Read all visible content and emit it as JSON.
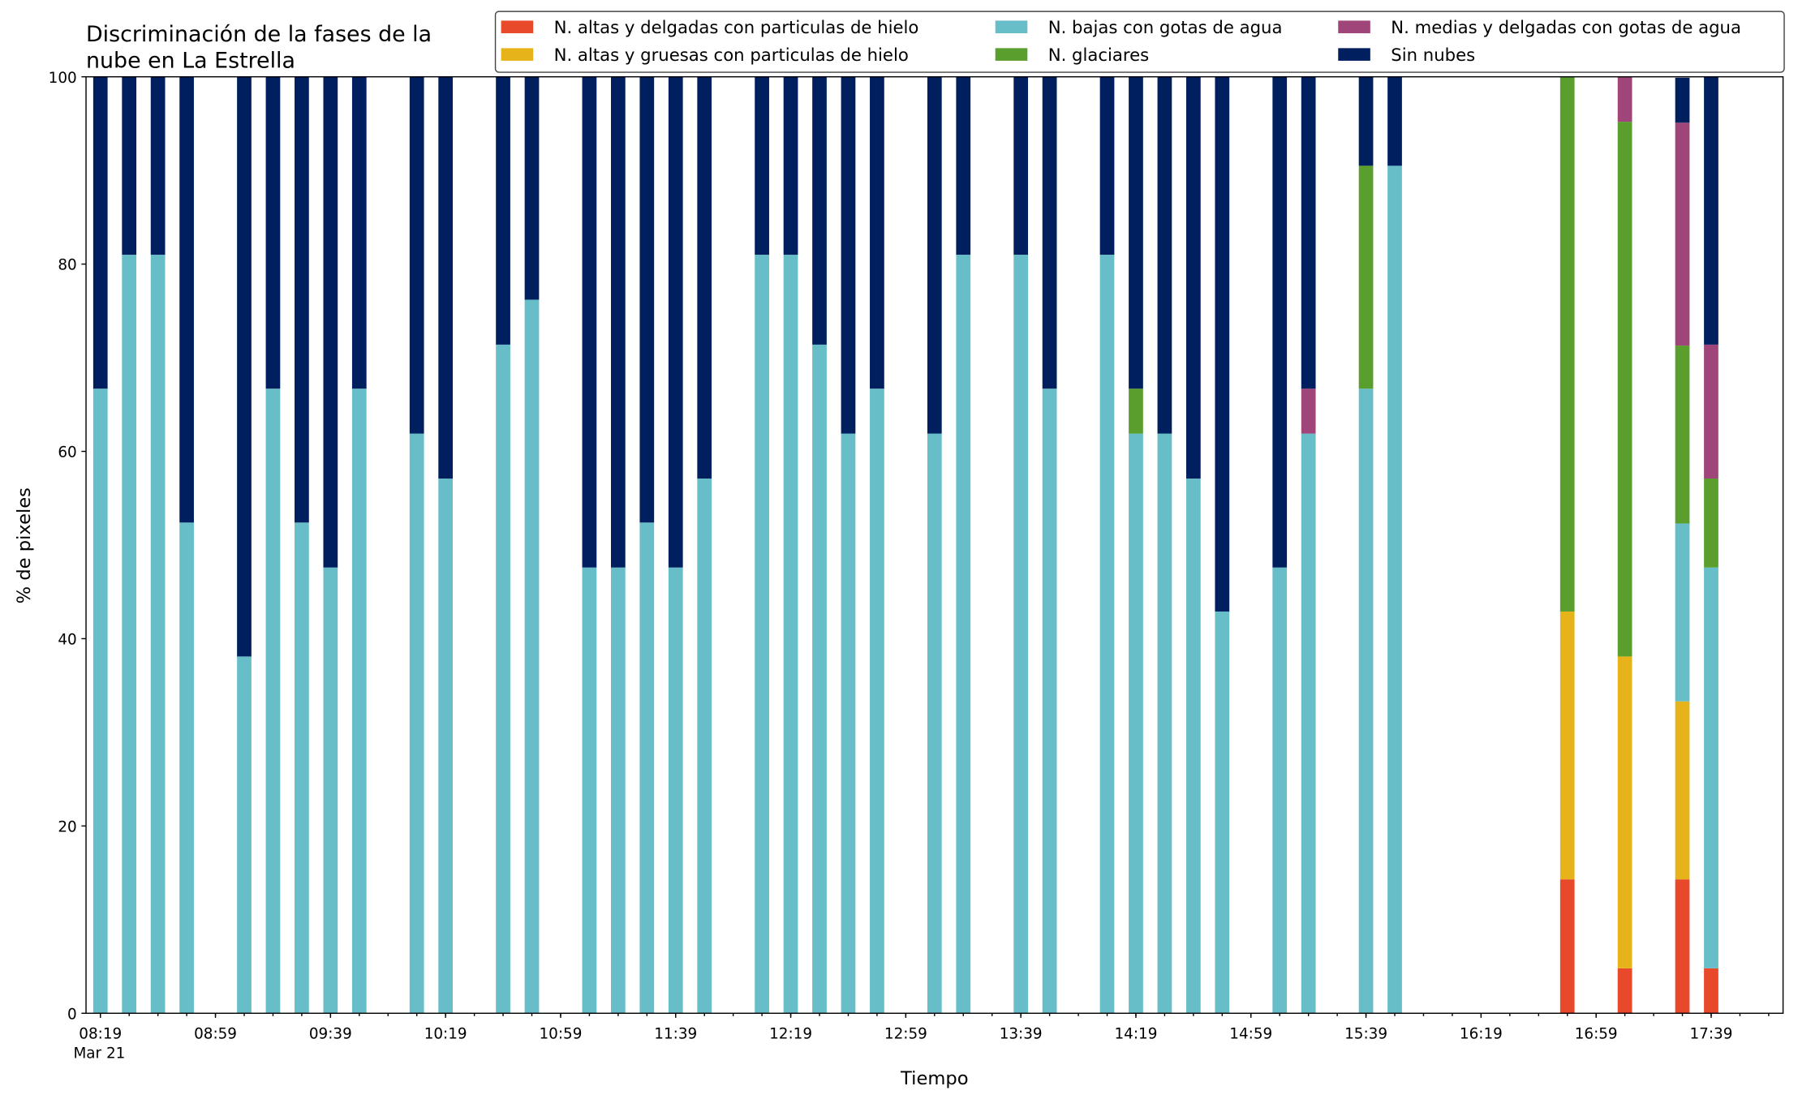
{
  "chart_data": {
    "type": "stacked_bar",
    "title": [
      "Discriminación de la fases de la",
      "nube en La Estrella"
    ],
    "xlabel": "Tiempo",
    "ylabel": "% de pixeles",
    "x_offset_label": "Mar 21",
    "x": [
      "08:19",
      "08:29",
      "08:39",
      "08:49",
      "09:09",
      "09:19",
      "09:29",
      "09:39",
      "09:49",
      "10:09",
      "10:19",
      "10:39",
      "10:49",
      "11:09",
      "11:19",
      "11:29",
      "11:39",
      "11:49",
      "12:09",
      "12:19",
      "12:29",
      "12:39",
      "12:49",
      "13:09",
      "13:19",
      "13:39",
      "13:49",
      "14:09",
      "14:19",
      "14:29",
      "14:39",
      "14:49",
      "15:09",
      "15:19",
      "15:39",
      "15:49",
      "16:49",
      "17:09",
      "17:29",
      "17:39"
    ],
    "series": [
      {
        "name": "N. altas y delgadas con particulas de hielo",
        "color": "#e8492a",
        "values": [
          0,
          0,
          0,
          0,
          0,
          0,
          0,
          0,
          0,
          0,
          0,
          0,
          0,
          0,
          0,
          0,
          0,
          0,
          0,
          0,
          0,
          0,
          0,
          0,
          0,
          0,
          0,
          0,
          0,
          0,
          0,
          0,
          0,
          0,
          0,
          0,
          14.3,
          4.8,
          14.3,
          4.8
        ]
      },
      {
        "name": "N. altas y gruesas con particulas de hielo",
        "color": "#e6b41a",
        "values": [
          0,
          0,
          0,
          0,
          0,
          0,
          0,
          0,
          0,
          0,
          0,
          0,
          0,
          0,
          0,
          0,
          0,
          0,
          0,
          0,
          0,
          0,
          0,
          0,
          0,
          0,
          0,
          0,
          0,
          0,
          0,
          0,
          0,
          0,
          0,
          0,
          28.6,
          33.3,
          19,
          0
        ]
      },
      {
        "name": "N. bajas con gotas de agua",
        "color": "#67bdc8",
        "values": [
          66.7,
          81,
          81,
          52.4,
          38.1,
          66.7,
          52.4,
          47.6,
          66.7,
          61.9,
          57.1,
          71.4,
          76.2,
          47.6,
          47.6,
          52.4,
          47.6,
          57.1,
          81,
          81,
          71.4,
          61.9,
          66.7,
          61.9,
          81,
          81,
          66.7,
          81,
          61.9,
          61.9,
          57.1,
          42.9,
          47.6,
          61.9,
          66.7,
          90.5,
          0,
          0,
          19,
          42.8
        ]
      },
      {
        "name": "N. glaciares",
        "color": "#5a9e2e",
        "values": [
          0,
          0,
          0,
          0,
          0,
          0,
          0,
          0,
          0,
          0,
          0,
          0,
          0,
          0,
          0,
          0,
          0,
          0,
          0,
          0,
          0,
          0,
          0,
          0,
          0,
          0,
          0,
          0,
          4.8,
          0,
          0,
          0,
          0,
          0,
          23.8,
          0,
          57.1,
          57.1,
          19,
          9.5
        ]
      },
      {
        "name": "N. medias y delgadas con gotas de agua",
        "color": "#a0457a",
        "values": [
          0,
          0,
          0,
          0,
          0,
          0,
          0,
          0,
          0,
          0,
          0,
          0,
          0,
          0,
          0,
          0,
          0,
          0,
          0,
          0,
          0,
          0,
          0,
          0,
          0,
          0,
          0,
          0,
          0,
          0,
          0,
          0,
          0,
          4.8,
          0,
          0,
          0,
          4.8,
          23.8,
          14.3
        ]
      },
      {
        "name": "Sin nubes",
        "color": "#001f5f",
        "values": [
          33.3,
          19,
          19,
          47.6,
          61.9,
          33.3,
          47.6,
          52.4,
          33.3,
          38.1,
          42.9,
          28.6,
          23.8,
          52.4,
          52.4,
          47.6,
          52.4,
          42.9,
          19,
          19,
          28.6,
          38.1,
          33.3,
          38.1,
          19,
          19,
          33.3,
          19,
          33.3,
          38.1,
          42.9,
          57.1,
          52.4,
          33.3,
          9.5,
          9.5,
          0,
          0,
          4.8,
          28.6
        ]
      }
    ],
    "xlim": [
      "08:14",
      "18:04"
    ],
    "xticks": [
      "08:19",
      "08:59",
      "09:39",
      "10:19",
      "10:59",
      "11:39",
      "12:19",
      "12:59",
      "13:39",
      "14:19",
      "14:59",
      "15:39",
      "16:19",
      "16:59",
      "17:39"
    ],
    "xticks_minor": [
      "08:19",
      "08:29",
      "08:39",
      "08:49",
      "08:59",
      "09:09",
      "09:19",
      "09:29",
      "09:39",
      "09:49",
      "09:59",
      "10:09",
      "10:19",
      "10:29",
      "10:39",
      "10:49",
      "10:59",
      "11:09",
      "11:19",
      "11:29",
      "11:39",
      "11:49",
      "11:59",
      "12:09",
      "12:19",
      "12:29",
      "12:39",
      "12:49",
      "12:59",
      "13:09",
      "13:19",
      "13:29",
      "13:39",
      "13:49",
      "13:59",
      "14:09",
      "14:19",
      "14:29",
      "14:39",
      "14:49",
      "14:59",
      "15:09",
      "15:19",
      "15:29",
      "15:39",
      "15:49",
      "15:59",
      "16:09",
      "16:19",
      "16:29",
      "16:39",
      "16:49",
      "16:59",
      "17:09",
      "17:19",
      "17:29",
      "17:39",
      "17:49",
      "17:59"
    ],
    "ylim": [
      0,
      100
    ],
    "yticks": [
      0,
      20,
      40,
      60,
      80,
      100
    ],
    "legend": "upper right",
    "grid": false
  }
}
